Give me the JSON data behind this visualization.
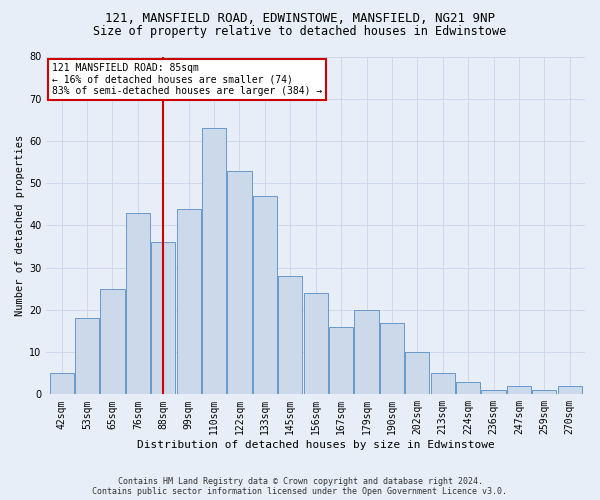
{
  "title_line1": "121, MANSFIELD ROAD, EDWINSTOWE, MANSFIELD, NG21 9NP",
  "title_line2": "Size of property relative to detached houses in Edwinstowe",
  "xlabel": "Distribution of detached houses by size in Edwinstowe",
  "ylabel": "Number of detached properties",
  "footnote1": "Contains HM Land Registry data © Crown copyright and database right 2024.",
  "footnote2": "Contains public sector information licensed under the Open Government Licence v3.0.",
  "bar_labels": [
    "42sqm",
    "53sqm",
    "65sqm",
    "76sqm",
    "88sqm",
    "99sqm",
    "110sqm",
    "122sqm",
    "133sqm",
    "145sqm",
    "156sqm",
    "167sqm",
    "179sqm",
    "190sqm",
    "202sqm",
    "213sqm",
    "224sqm",
    "236sqm",
    "247sqm",
    "259sqm",
    "270sqm"
  ],
  "bar_values": [
    5,
    18,
    25,
    43,
    36,
    44,
    63,
    53,
    47,
    28,
    24,
    16,
    20,
    17,
    10,
    5,
    3,
    1,
    2,
    1,
    2
  ],
  "bar_color": "#ccd9ea",
  "bar_edge_color": "#6699cc",
  "vline_x": 4.0,
  "vline_color": "#cc0000",
  "annotation_line1": "121 MANSFIELD ROAD: 85sqm",
  "annotation_line2": "← 16% of detached houses are smaller (74)",
  "annotation_line3": "83% of semi-detached houses are larger (384) →",
  "annotation_box_color": "white",
  "annotation_box_edge_color": "#cc0000",
  "ylim": [
    0,
    80
  ],
  "yticks": [
    0,
    10,
    20,
    30,
    40,
    50,
    60,
    70,
    80
  ],
  "grid_color": "#c8d4e8",
  "bg_color": "#e8eef8",
  "plot_bg_color": "#e8eef8",
  "title_fontsize": 9,
  "subtitle_fontsize": 8.5,
  "ylabel_fontsize": 7.5,
  "xlabel_fontsize": 8,
  "tick_fontsize": 7,
  "annot_fontsize": 7,
  "footnote_fontsize": 6
}
